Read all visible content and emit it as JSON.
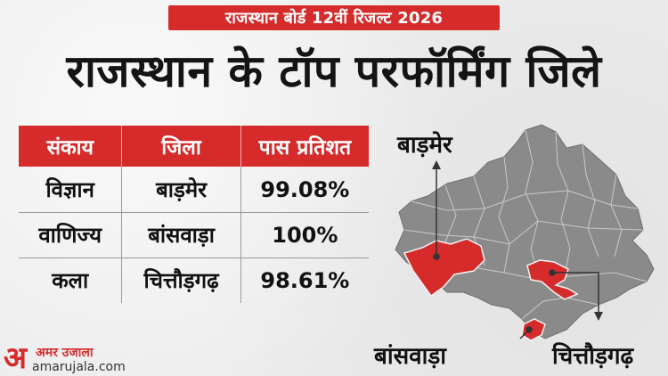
{
  "banner": {
    "text": "राजस्थान बोर्ड 12वीं रिजल्ट 2026"
  },
  "title": "राजस्थान के टॉप परफॉर्मिंग जिले",
  "table": {
    "headers": [
      "संकाय",
      "जिला",
      "पास प्रतिशत"
    ],
    "rows": [
      [
        "विज्ञान",
        "बाड़मेर",
        "99.08%"
      ],
      [
        "वाणिज्य",
        "बांसवाड़ा",
        "100%"
      ],
      [
        "कला",
        "चित्तौड़गढ़",
        "98.61%"
      ]
    ]
  },
  "map": {
    "labels": {
      "barmer": "बाड़मेर",
      "banswara": "बांसवाड़ा",
      "chittorgarh": "चित्तौड़गढ़"
    },
    "colors": {
      "state": "#8a8a8a",
      "highlight": "#d52b2b",
      "border": "#bdbdbd"
    }
  },
  "logo": {
    "mark": "अ",
    "name": "अमर उजाला",
    "site": "amarujala.com"
  },
  "colors": {
    "accent": "#d52b2b",
    "background": "#ececec"
  }
}
